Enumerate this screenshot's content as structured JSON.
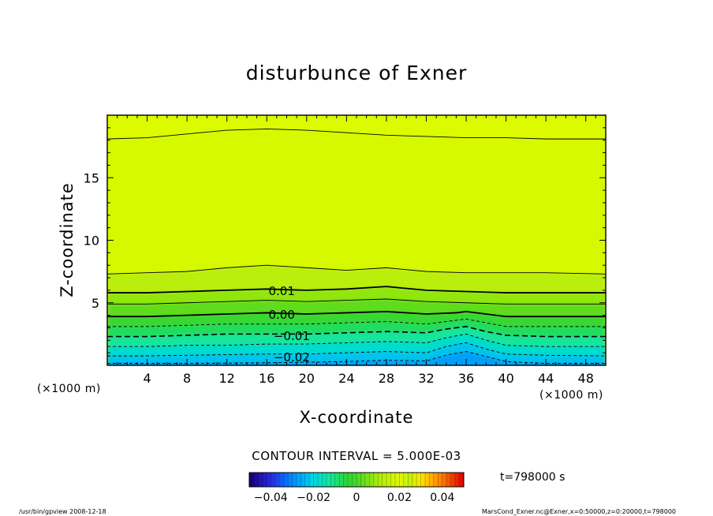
{
  "chart_data": {
    "type": "contour",
    "title": "disturbunce of Exner",
    "xlabel": "X-coordinate",
    "ylabel": "Z-coordinate",
    "x_unit": "(×1000 m)",
    "y_unit": "(×1000 m)",
    "xlim": [
      0,
      50
    ],
    "ylim": [
      0,
      20
    ],
    "xticks": [
      4,
      8,
      12,
      16,
      20,
      24,
      28,
      32,
      36,
      40,
      44,
      48
    ],
    "yticks": [
      5,
      10,
      15
    ],
    "contour_interval_text": "CONTOUR INTERVAL = 5.000E-03",
    "contour_labels": [
      {
        "text": "0.01",
        "x": 17.5,
        "z": 6.0
      },
      {
        "text": "0.00",
        "x": 17.5,
        "z": 4.1
      },
      {
        "text": "-0.01",
        "x": 18.5,
        "z": 2.4
      },
      {
        "text": "-0.02",
        "x": 18.5,
        "z": 0.7
      }
    ],
    "contours": [
      {
        "level": 0.025,
        "style": "solid",
        "points": [
          [
            0,
            18.1
          ],
          [
            4,
            18.2
          ],
          [
            8,
            18.5
          ],
          [
            12,
            18.8
          ],
          [
            16,
            18.9
          ],
          [
            20,
            18.8
          ],
          [
            24,
            18.6
          ],
          [
            28,
            18.4
          ],
          [
            32,
            18.3
          ],
          [
            36,
            18.2
          ],
          [
            40,
            18.2
          ],
          [
            44,
            18.1
          ],
          [
            50,
            18.1
          ]
        ]
      },
      {
        "level": 0.015,
        "style": "solid",
        "points": [
          [
            0,
            7.3
          ],
          [
            4,
            7.4
          ],
          [
            8,
            7.5
          ],
          [
            12,
            7.8
          ],
          [
            16,
            8.0
          ],
          [
            20,
            7.8
          ],
          [
            24,
            7.6
          ],
          [
            28,
            7.8
          ],
          [
            32,
            7.5
          ],
          [
            36,
            7.4
          ],
          [
            40,
            7.4
          ],
          [
            44,
            7.4
          ],
          [
            50,
            7.3
          ]
        ]
      },
      {
        "level": 0.01,
        "style": "bold",
        "points": [
          [
            0,
            5.8
          ],
          [
            4,
            5.8
          ],
          [
            8,
            5.9
          ],
          [
            12,
            6.0
          ],
          [
            16,
            6.1
          ],
          [
            20,
            6.0
          ],
          [
            24,
            6.1
          ],
          [
            28,
            6.3
          ],
          [
            32,
            6.0
          ],
          [
            36,
            5.9
          ],
          [
            40,
            5.8
          ],
          [
            44,
            5.8
          ],
          [
            50,
            5.8
          ]
        ]
      },
      {
        "level": 0.005,
        "style": "solid",
        "points": [
          [
            0,
            4.9
          ],
          [
            4,
            4.9
          ],
          [
            8,
            5.0
          ],
          [
            12,
            5.1
          ],
          [
            16,
            5.2
          ],
          [
            20,
            5.1
          ],
          [
            24,
            5.2
          ],
          [
            28,
            5.3
          ],
          [
            32,
            5.1
          ],
          [
            36,
            5.0
          ],
          [
            40,
            4.9
          ],
          [
            44,
            4.9
          ],
          [
            50,
            4.9
          ]
        ]
      },
      {
        "level": 0.0,
        "style": "bold",
        "points": [
          [
            0,
            3.9
          ],
          [
            4,
            3.9
          ],
          [
            8,
            4.0
          ],
          [
            12,
            4.1
          ],
          [
            16,
            4.2
          ],
          [
            20,
            4.1
          ],
          [
            24,
            4.2
          ],
          [
            28,
            4.3
          ],
          [
            32,
            4.1
          ],
          [
            35,
            4.2
          ],
          [
            36,
            4.3
          ],
          [
            38,
            4.1
          ],
          [
            40,
            3.9
          ],
          [
            44,
            3.9
          ],
          [
            50,
            3.9
          ]
        ]
      },
      {
        "level": -0.005,
        "style": "dashed",
        "points": [
          [
            0,
            3.1
          ],
          [
            4,
            3.1
          ],
          [
            8,
            3.2
          ],
          [
            12,
            3.3
          ],
          [
            16,
            3.3
          ],
          [
            20,
            3.3
          ],
          [
            24,
            3.4
          ],
          [
            28,
            3.5
          ],
          [
            32,
            3.3
          ],
          [
            34,
            3.5
          ],
          [
            36,
            3.7
          ],
          [
            38,
            3.4
          ],
          [
            40,
            3.1
          ],
          [
            44,
            3.1
          ],
          [
            50,
            3.1
          ]
        ]
      },
      {
        "level": -0.01,
        "style": "dashed",
        "points": [
          [
            0,
            2.3
          ],
          [
            4,
            2.3
          ],
          [
            8,
            2.4
          ],
          [
            12,
            2.5
          ],
          [
            16,
            2.5
          ],
          [
            20,
            2.5
          ],
          [
            24,
            2.6
          ],
          [
            28,
            2.7
          ],
          [
            32,
            2.6
          ],
          [
            34,
            2.9
          ],
          [
            36,
            3.1
          ],
          [
            38,
            2.7
          ],
          [
            40,
            2.4
          ],
          [
            44,
            2.3
          ],
          [
            50,
            2.3
          ]
        ]
      },
      {
        "level": -0.015,
        "style": "dashed",
        "points": [
          [
            0,
            1.5
          ],
          [
            4,
            1.5
          ],
          [
            8,
            1.6
          ],
          [
            12,
            1.6
          ],
          [
            16,
            1.7
          ],
          [
            20,
            1.7
          ],
          [
            24,
            1.8
          ],
          [
            28,
            1.9
          ],
          [
            32,
            1.8
          ],
          [
            34,
            2.2
          ],
          [
            36,
            2.5
          ],
          [
            38,
            2.0
          ],
          [
            40,
            1.6
          ],
          [
            44,
            1.5
          ],
          [
            50,
            1.5
          ]
        ]
      },
      {
        "level": -0.02,
        "style": "dashed",
        "points": [
          [
            0,
            0.75
          ],
          [
            4,
            0.75
          ],
          [
            8,
            0.8
          ],
          [
            12,
            0.85
          ],
          [
            16,
            0.9
          ],
          [
            20,
            0.9
          ],
          [
            24,
            1.0
          ],
          [
            28,
            1.1
          ],
          [
            32,
            1.0
          ],
          [
            34,
            1.5
          ],
          [
            36,
            1.8
          ],
          [
            38,
            1.3
          ],
          [
            40,
            0.9
          ],
          [
            44,
            0.8
          ],
          [
            50,
            0.75
          ]
        ]
      },
      {
        "level": -0.025,
        "style": "dashed",
        "points": [
          [
            0,
            0.15
          ],
          [
            8,
            0.15
          ],
          [
            16,
            0.2
          ],
          [
            24,
            0.3
          ],
          [
            28,
            0.4
          ],
          [
            32,
            0.35
          ],
          [
            34,
            0.8
          ],
          [
            36,
            1.1
          ],
          [
            38,
            0.7
          ],
          [
            40,
            0.3
          ],
          [
            44,
            0.15
          ],
          [
            50,
            0.15
          ]
        ]
      }
    ],
    "colorbar": {
      "min": -0.05,
      "max": 0.05,
      "tick_labels": [
        "-0.04",
        "-0.02",
        "0",
        "0.02",
        "0.04"
      ],
      "tick_values": [
        -0.04,
        -0.02,
        0,
        0.02,
        0.04
      ]
    },
    "time_label": "t=798000 s"
  },
  "footer": {
    "left": "/usr/bin/gpview  2008-12-18",
    "right": "MarsCond_Exner.nc@Exner,x=0:50000,z=0:20000,t=798000"
  },
  "colors": {
    "frame": "#000000",
    "background": "#ffffff"
  }
}
